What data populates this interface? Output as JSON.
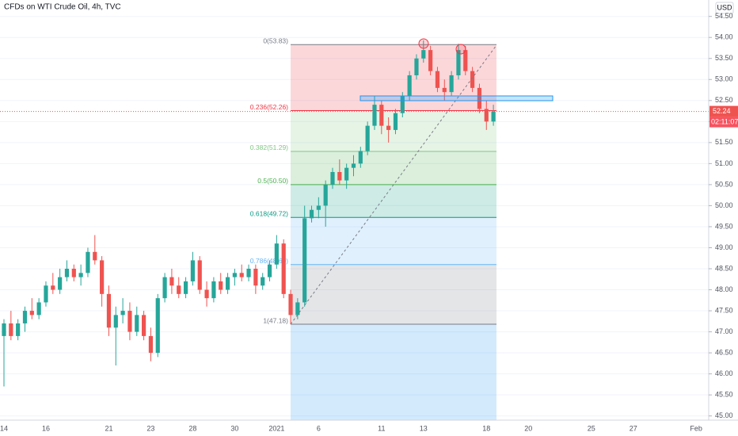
{
  "chart_data": {
    "type": "candlestick",
    "title": "CFDs on WTI Crude Oil, 4h, TVC",
    "currency": "USD",
    "categories": [
      "14",
      null,
      null,
      null,
      null,
      null,
      "16",
      null,
      null,
      null,
      null,
      null,
      null,
      null,
      null,
      "21",
      null,
      null,
      null,
      null,
      null,
      "23",
      null,
      null,
      null,
      null,
      null,
      "28",
      null,
      null,
      null,
      null,
      null,
      "30",
      null,
      null,
      null,
      null,
      null,
      "2021",
      null,
      null,
      null,
      null,
      null,
      "6",
      null,
      null,
      null,
      null,
      null,
      null,
      null,
      null,
      "11",
      null,
      null,
      null,
      null,
      null,
      "13",
      null,
      null,
      null,
      null,
      null,
      null,
      null,
      null,
      "18",
      null,
      null,
      null,
      null,
      null,
      "20",
      null,
      null,
      null,
      null,
      null,
      null,
      null,
      null,
      "25",
      null,
      null,
      null,
      null,
      null,
      "27",
      null,
      null,
      null,
      null,
      null,
      null,
      null,
      null,
      "Feb",
      null,
      null
    ],
    "open": [
      46.9,
      47.2,
      46.9,
      47.2,
      47.5,
      47.4,
      47.7,
      48.1,
      48.0,
      48.3,
      48.5,
      48.3,
      48.4,
      48.9,
      48.7,
      47.9,
      47.1,
      47.4,
      47.5,
      47.0,
      47.4,
      46.9,
      46.5,
      47.8,
      48.3,
      48.1,
      47.9,
      48.2,
      48.7,
      48.0,
      47.8,
      48.2,
      48.0,
      48.3,
      48.4,
      48.3,
      48.5,
      48.1,
      48.3,
      48.6,
      49.1,
      47.9,
      47.4,
      47.7,
      49.7,
      49.9,
      50.0,
      50.5,
      50.8,
      50.6,
      50.9,
      51.0,
      51.3,
      51.9,
      52.4,
      51.9,
      51.8,
      52.2,
      52.6,
      53.1,
      53.5,
      53.7,
      53.2,
      52.8,
      52.7,
      53.1,
      53.7,
      53.2,
      52.8,
      52.3,
      52.0,
      null,
      null,
      null,
      null,
      null,
      null,
      null,
      null,
      null,
      null,
      null,
      null,
      null,
      null,
      null,
      null,
      null,
      null,
      null,
      null,
      null,
      null,
      null,
      null,
      null,
      null,
      null,
      null,
      null,
      null,
      null
    ],
    "high": [
      47.3,
      47.5,
      47.3,
      47.6,
      47.8,
      47.8,
      48.2,
      48.4,
      48.5,
      48.7,
      48.6,
      48.6,
      49.0,
      49.3,
      48.8,
      48.1,
      47.6,
      47.8,
      47.7,
      47.6,
      47.5,
      47.1,
      47.9,
      48.4,
      48.5,
      48.3,
      48.3,
      48.9,
      48.8,
      48.2,
      48.3,
      48.4,
      48.4,
      48.5,
      48.6,
      48.6,
      48.6,
      48.4,
      48.7,
      49.3,
      49.2,
      48.0,
      47.8,
      50.0,
      50.0,
      50.2,
      50.6,
      50.9,
      51.1,
      51.0,
      51.2,
      51.4,
      52.0,
      52.6,
      52.5,
      52.1,
      52.3,
      52.7,
      53.2,
      53.6,
      53.93,
      53.8,
      53.3,
      53.0,
      53.2,
      53.85,
      53.8,
      53.3,
      52.9,
      52.5,
      52.4,
      null,
      null,
      null,
      null,
      null,
      null,
      null,
      null,
      null,
      null,
      null,
      null,
      null,
      null,
      null,
      null,
      null,
      null,
      null,
      null,
      null,
      null,
      null,
      null,
      null,
      null,
      null,
      null,
      null,
      null,
      null
    ],
    "low": [
      45.7,
      46.8,
      46.8,
      47.0,
      47.3,
      47.3,
      47.6,
      47.9,
      47.9,
      48.2,
      48.2,
      48.1,
      48.3,
      48.6,
      47.6,
      46.9,
      46.2,
      47.2,
      46.8,
      46.9,
      46.8,
      46.3,
      46.4,
      47.7,
      47.9,
      47.8,
      47.8,
      48.1,
      47.9,
      47.6,
      47.7,
      47.9,
      47.9,
      48.1,
      48.2,
      48.2,
      47.9,
      48.0,
      48.2,
      48.5,
      47.8,
      47.18,
      47.3,
      47.6,
      49.6,
      49.7,
      49.5,
      50.4,
      50.5,
      50.4,
      50.7,
      50.9,
      51.2,
      51.8,
      51.7,
      51.5,
      51.7,
      52.1,
      52.5,
      53.0,
      53.4,
      53.1,
      52.7,
      52.5,
      52.6,
      53.0,
      53.1,
      52.7,
      52.2,
      51.8,
      51.9,
      null,
      null,
      null,
      null,
      null,
      null,
      null,
      null,
      null,
      null,
      null,
      null,
      null,
      null,
      null,
      null,
      null,
      null,
      null,
      null,
      null,
      null,
      null,
      null,
      null,
      null,
      null,
      null,
      null,
      null,
      null
    ],
    "close": [
      47.2,
      46.9,
      47.2,
      47.5,
      47.4,
      47.7,
      48.1,
      48.0,
      48.3,
      48.5,
      48.3,
      48.4,
      48.9,
      48.7,
      47.9,
      47.1,
      47.4,
      47.5,
      47.0,
      47.4,
      46.9,
      46.5,
      47.8,
      48.3,
      48.1,
      47.9,
      48.2,
      48.7,
      48.0,
      47.8,
      48.2,
      48.0,
      48.3,
      48.4,
      48.3,
      48.5,
      48.1,
      48.3,
      48.6,
      49.1,
      47.9,
      47.4,
      47.7,
      49.7,
      49.9,
      50.0,
      50.5,
      50.8,
      50.6,
      50.9,
      51.0,
      51.3,
      51.9,
      52.4,
      51.9,
      51.8,
      52.2,
      52.6,
      53.1,
      53.5,
      53.7,
      53.2,
      52.8,
      52.7,
      53.1,
      53.7,
      53.2,
      52.8,
      52.3,
      52.0,
      52.24,
      null,
      null,
      null,
      null,
      null,
      null,
      null,
      null,
      null,
      null,
      null,
      null,
      null,
      null,
      null,
      null,
      null,
      null,
      null,
      null,
      null,
      null,
      null,
      null,
      null,
      null,
      null,
      null,
      null,
      null,
      null
    ],
    "up_color": "#26a69a",
    "down_color": "#ef5350",
    "ylim": [
      44.9,
      54.89
    ],
    "yticks": [
      {
        "value": 45,
        "label": "45.00"
      },
      {
        "value": 45.5,
        "label": "45.50"
      },
      {
        "value": 46,
        "label": "46.00"
      },
      {
        "value": 46.5,
        "label": "46.50"
      },
      {
        "value": 47,
        "label": "47.00"
      },
      {
        "value": 47.5,
        "label": "47.50"
      },
      {
        "value": 48,
        "label": "48.00"
      },
      {
        "value": 48.5,
        "label": "48.50"
      },
      {
        "value": 49,
        "label": "49.00"
      },
      {
        "value": 49.5,
        "label": "49.50"
      },
      {
        "value": 50,
        "label": "50.00"
      },
      {
        "value": 50.5,
        "label": "50.50"
      },
      {
        "value": 51,
        "label": "51.00"
      },
      {
        "value": 51.5,
        "label": "51.50"
      },
      {
        "value": 52,
        "label": "52.00"
      },
      {
        "value": 52.5,
        "label": "52.50"
      },
      {
        "value": 53,
        "label": "53.00"
      },
      {
        "value": 53.5,
        "label": "53.50"
      },
      {
        "value": 54,
        "label": "54.00"
      },
      {
        "value": 54.5,
        "label": "54.50"
      }
    ],
    "grid": true,
    "last_price": 52.24,
    "countdown": "02:11:07",
    "fib_levels": [
      {
        "label": "0(53.83)",
        "value": 53.83,
        "color": "#787b86"
      },
      {
        "label": "0.236(52.26)",
        "value": 52.26,
        "color": "#f23645"
      },
      {
        "label": "0.382(51.29)",
        "value": 51.29,
        "color": "#81c784"
      },
      {
        "label": "0.5(50.50)",
        "value": 50.5,
        "color": "#4caf50"
      },
      {
        "label": "0.618(49.72)",
        "value": 49.72,
        "color": "#089981"
      },
      {
        "label": "0.786(48.60)",
        "value": 48.6,
        "color": "#64b5f6"
      },
      {
        "label": "1(47.18)",
        "value": 47.18,
        "color": "#787b86"
      }
    ]
  }
}
